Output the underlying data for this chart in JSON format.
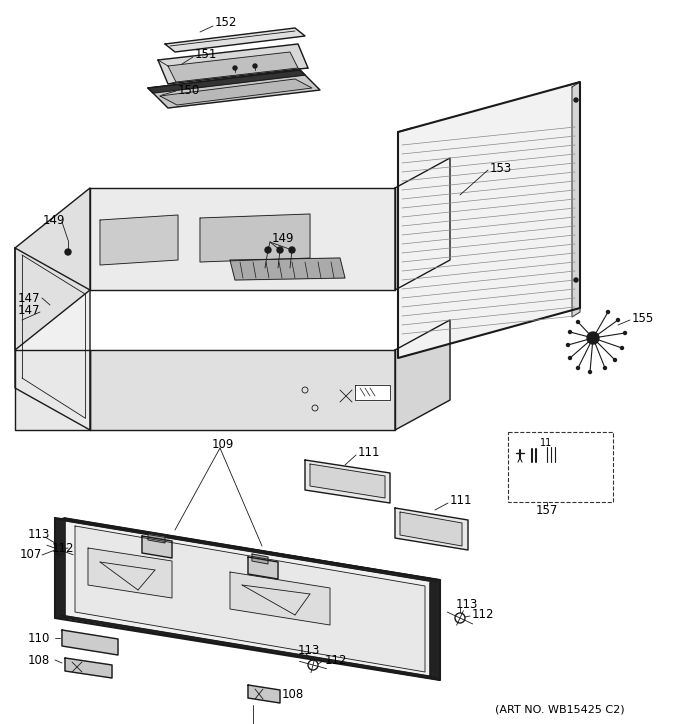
{
  "art_no": "(ART NO. WB15425 C2)",
  "bg_color": "#ffffff",
  "line_color": "#1a1a1a",
  "figsize": [
    6.8,
    7.24
  ],
  "dpi": 100,
  "font_size": 8.5
}
